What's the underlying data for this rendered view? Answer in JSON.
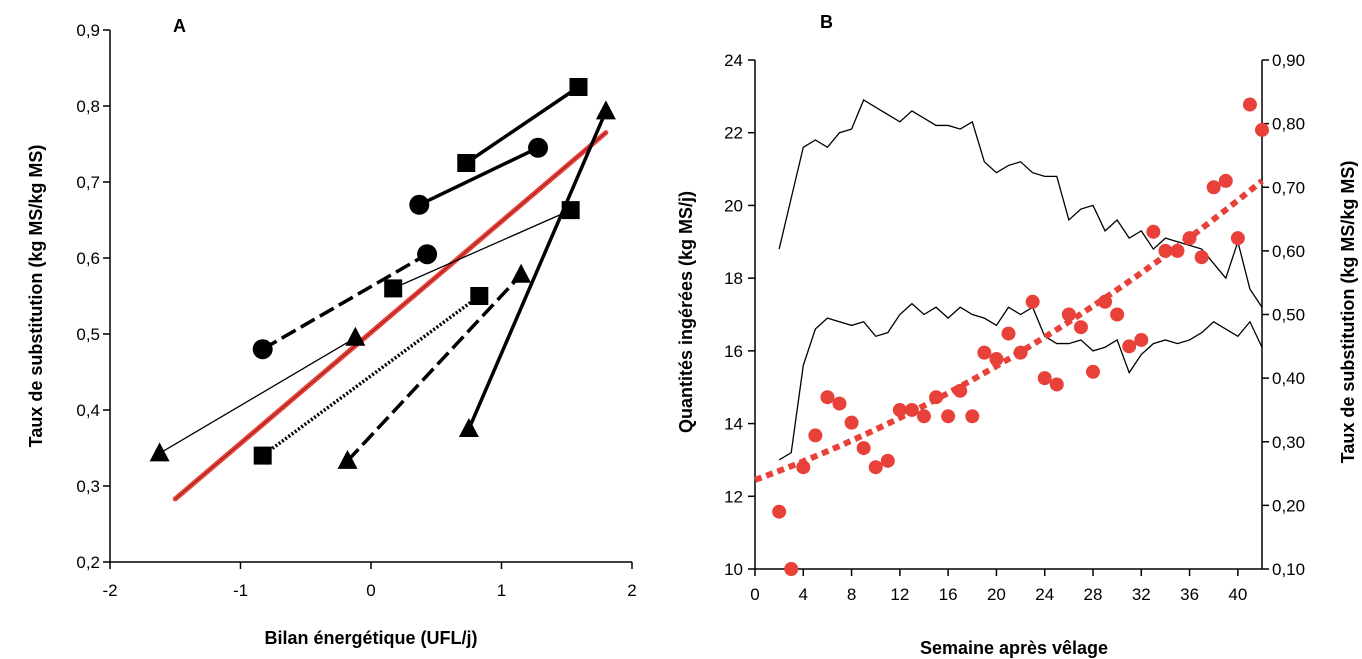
{
  "chart_data": [
    {
      "panel": "A",
      "type": "line",
      "xlabel": "Bilan énergétique (UFL/j)",
      "ylabel": "Taux de substitution (kg MS/kg MS)",
      "xlim": [
        -2,
        2
      ],
      "ylim": [
        0.2,
        0.9
      ],
      "xticks": [
        -2,
        -1,
        0,
        1,
        2
      ],
      "xtick_labels": [
        "-2",
        "-1",
        "0",
        "1",
        "2"
      ],
      "yticks": [
        0.2,
        0.3,
        0.4,
        0.5,
        0.6,
        0.7,
        0.8,
        0.9
      ],
      "ytick_labels": [
        "0,2",
        "0,3",
        "0,4",
        "0,5",
        "0,6",
        "0,7",
        "0,8",
        "0,9"
      ],
      "series": [
        {
          "marker": "square",
          "style": "thick-solid",
          "points": [
            [
              0.73,
              0.725
            ],
            [
              1.59,
              0.825
            ]
          ]
        },
        {
          "marker": "circle",
          "style": "thick-solid",
          "points": [
            [
              0.37,
              0.67
            ],
            [
              1.28,
              0.745
            ]
          ]
        },
        {
          "marker": "circle",
          "style": "thick-dash",
          "points": [
            [
              -0.83,
              0.48
            ],
            [
              0.43,
              0.605
            ]
          ]
        },
        {
          "marker": "square",
          "style": "thin-solid",
          "points": [
            [
              0.17,
              0.56
            ],
            [
              1.53,
              0.663
            ]
          ]
        },
        {
          "marker": "triangle",
          "style": "thin-solid",
          "points": [
            [
              -0.12,
              0.495
            ],
            [
              -1.62,
              0.343
            ]
          ]
        },
        {
          "marker": "triangle",
          "style": "thick-dash",
          "points": [
            [
              -0.18,
              0.333
            ],
            [
              1.15,
              0.578
            ]
          ]
        },
        {
          "marker": "square",
          "style": "dotted",
          "points": [
            [
              -0.83,
              0.34
            ],
            [
              0.83,
              0.55
            ]
          ]
        },
        {
          "marker": "triangle",
          "style": "thick-solid",
          "points": [
            [
              0.75,
              0.375
            ],
            [
              1.8,
              0.793
            ]
          ]
        }
      ],
      "regression": {
        "color": "#e8413a",
        "points": [
          [
            -1.5,
            0.283
          ],
          [
            1.8,
            0.765
          ]
        ]
      }
    },
    {
      "panel": "B",
      "type": "line",
      "xlabel": "Semaine après vêlage",
      "ylabel": "Quantités ingérées (kg MS/j)",
      "y2label": "Taux de substitution (kg MS/kg MS)",
      "xlim": [
        0,
        42
      ],
      "ylim": [
        10,
        24
      ],
      "y2lim": [
        0.1,
        0.9
      ],
      "xticks": [
        0,
        4,
        8,
        12,
        16,
        20,
        24,
        28,
        32,
        36,
        40
      ],
      "xtick_labels": [
        "0",
        "4",
        "8",
        "12",
        "16",
        "20",
        "24",
        "28",
        "32",
        "36",
        "40"
      ],
      "yticks": [
        10,
        12,
        14,
        16,
        18,
        20,
        22,
        24
      ],
      "ytick_labels": [
        "10",
        "12",
        "14",
        "16",
        "18",
        "20",
        "22",
        "24"
      ],
      "y2ticks": [
        0.1,
        0.2,
        0.3,
        0.4,
        0.5,
        0.6,
        0.7,
        0.8,
        0.9
      ],
      "y2tick_labels": [
        "0,10",
        "0,20",
        "0,30",
        "0,40",
        "0,50",
        "0,60",
        "0,70",
        "0,80",
        "0,90"
      ],
      "upper_line": {
        "x": [
          2,
          3,
          4,
          5,
          6,
          7,
          8,
          9,
          10,
          11,
          12,
          13,
          14,
          15,
          16,
          17,
          18,
          19,
          20,
          21,
          22,
          23,
          24,
          25,
          26,
          27,
          28,
          29,
          30,
          31,
          32,
          33,
          34,
          35,
          36,
          37,
          38,
          39,
          40,
          41,
          42
        ],
        "y": [
          18.8,
          20.2,
          21.6,
          21.8,
          21.6,
          22.0,
          22.1,
          22.9,
          22.7,
          22.5,
          22.3,
          22.6,
          22.4,
          22.2,
          22.2,
          22.1,
          22.3,
          21.2,
          20.9,
          21.1,
          21.2,
          20.9,
          20.8,
          20.8,
          19.6,
          19.9,
          20.0,
          19.3,
          19.6,
          19.1,
          19.3,
          18.8,
          19.1,
          19.0,
          18.9,
          18.8,
          18.4,
          18.0,
          19.0,
          17.7,
          17.2
        ]
      },
      "lower_line": {
        "x": [
          2,
          3,
          4,
          5,
          6,
          7,
          8,
          9,
          10,
          11,
          12,
          13,
          14,
          15,
          16,
          17,
          18,
          19,
          20,
          21,
          22,
          23,
          24,
          25,
          26,
          27,
          28,
          29,
          30,
          31,
          32,
          33,
          34,
          35,
          36,
          37,
          38,
          39,
          40,
          41,
          42
        ],
        "y": [
          13.0,
          13.2,
          15.6,
          16.6,
          16.9,
          16.8,
          16.7,
          16.8,
          16.4,
          16.5,
          17.0,
          17.3,
          17.0,
          17.2,
          16.9,
          17.2,
          17.0,
          16.9,
          16.7,
          17.2,
          17.0,
          17.2,
          16.4,
          16.2,
          16.2,
          16.3,
          16.0,
          16.1,
          16.3,
          15.4,
          15.9,
          16.2,
          16.3,
          16.2,
          16.3,
          16.5,
          16.8,
          16.6,
          16.4,
          16.8,
          16.1
        ]
      },
      "scatter": {
        "color": "#e8413a",
        "axis": "y2",
        "x": [
          2,
          3,
          4,
          5,
          6,
          7,
          8,
          9,
          10,
          11,
          12,
          13,
          14,
          15,
          16,
          17,
          18,
          19,
          20,
          21,
          22,
          23,
          24,
          25,
          26,
          27,
          28,
          29,
          30,
          31,
          32,
          33,
          34,
          35,
          36,
          37,
          38,
          39,
          40,
          41,
          42
        ],
        "y": [
          0.19,
          0.1,
          0.26,
          0.31,
          0.37,
          0.36,
          0.33,
          0.29,
          0.26,
          0.27,
          0.35,
          0.35,
          0.34,
          0.37,
          0.34,
          0.38,
          0.34,
          0.44,
          0.43,
          0.47,
          0.44,
          0.52,
          0.4,
          0.39,
          0.5,
          0.48,
          0.41,
          0.52,
          0.5,
          0.45,
          0.46,
          0.63,
          0.6,
          0.6,
          0.62,
          0.59,
          0.7,
          0.71,
          0.62,
          0.83,
          0.79
        ]
      },
      "trend": {
        "color": "#e8413a",
        "style": "dotted",
        "axis": "y2",
        "x": [
          0,
          42
        ],
        "curve": "quadratic",
        "points": [
          [
            0,
            0.24
          ],
          [
            21,
            0.43
          ],
          [
            42,
            0.71
          ]
        ]
      }
    }
  ],
  "panel_labels": {
    "a": "A",
    "b": "B"
  }
}
